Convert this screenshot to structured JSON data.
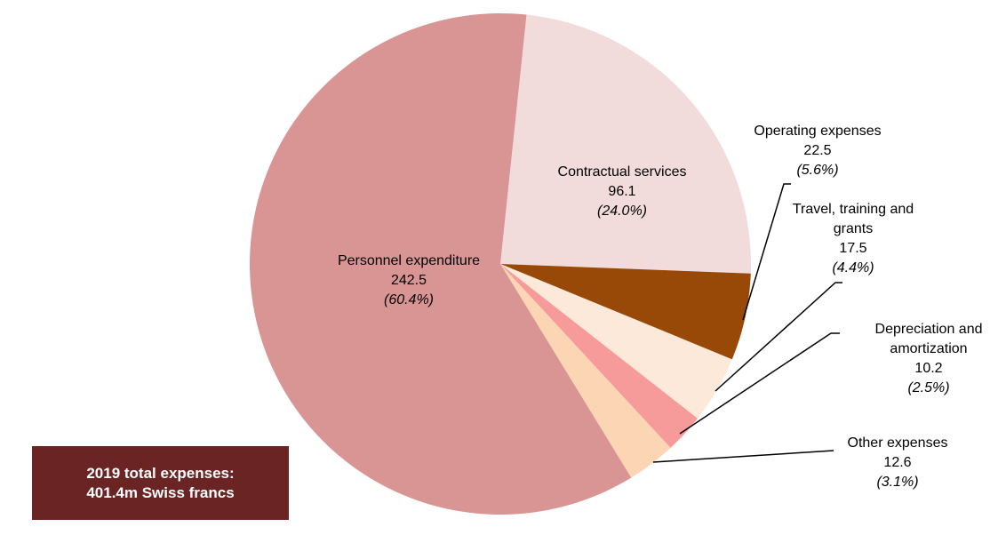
{
  "chart_data": {
    "type": "pie",
    "categories": [
      "Contractual services",
      "Operating expenses",
      "Travel, training and grants",
      "Depreciation and amortization",
      "Other expenses",
      "Personnel expenditure"
    ],
    "values": [
      96.1,
      22.5,
      17.5,
      10.2,
      12.6,
      242.5
    ],
    "percentages": [
      24.0,
      5.6,
      4.4,
      2.5,
      3.1,
      60.4
    ],
    "percentage_labels": [
      "(24.0%)",
      "(5.6%)",
      "(4.4%)",
      "(2.5%)",
      "(3.1%)",
      "(60.4%)"
    ],
    "colors": [
      "#f2dcdb",
      "#984807",
      "#fde9d9",
      "#f79a9a",
      "#fcd5b5",
      "#d99594"
    ],
    "note": [
      "2019 total expenses:",
      "401.4m Swiss francs"
    ]
  }
}
